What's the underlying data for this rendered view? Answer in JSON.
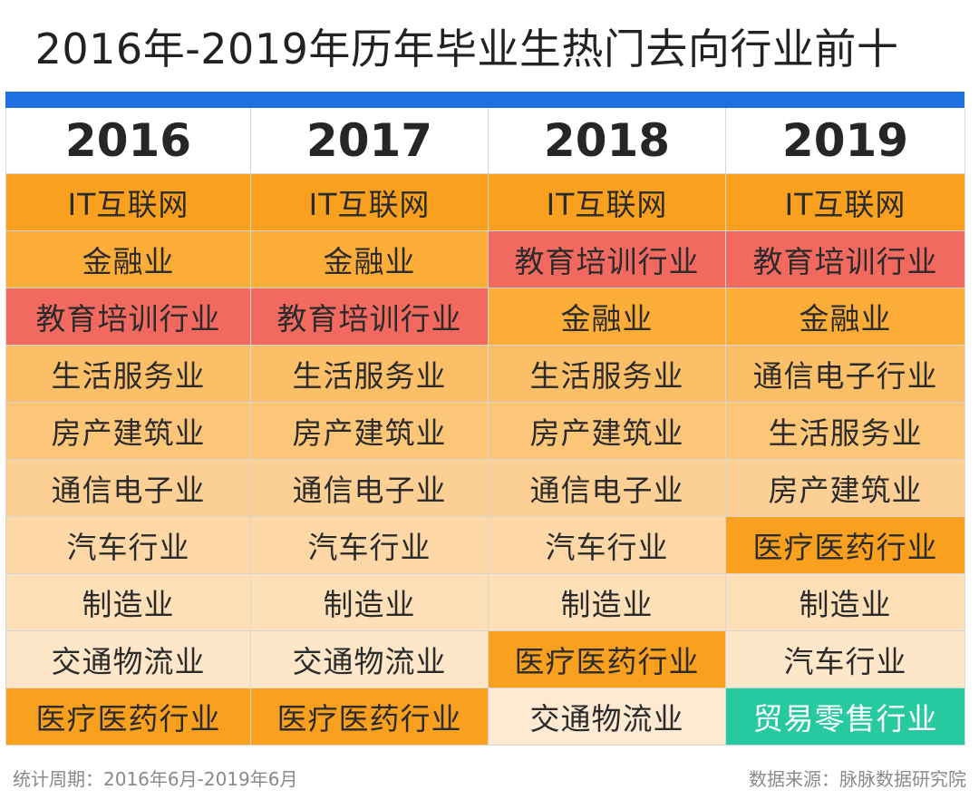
{
  "title": "2016年-2019年历年毕业生热门去向行业前十",
  "colors": {
    "header_bar": "#1e6fe0",
    "it_internet": "#f9a01e",
    "finance": "#fbad38",
    "education": "#f26a5f",
    "life_service": "#fbbf67",
    "real_estate": "#fcc679",
    "telecom": "#fcd094",
    "auto": "#fdd8a6",
    "manufacturing": "#fde0b8",
    "transport": "#fee7c9",
    "medical": "#f9a01e",
    "trade_retail": "#27c9a0"
  },
  "table": {
    "headers": [
      "2016",
      "2017",
      "2018",
      "2019"
    ],
    "rows": [
      [
        {
          "text": "IT互联网",
          "color": "#f9a01e"
        },
        {
          "text": "IT互联网",
          "color": "#f9a01e"
        },
        {
          "text": "IT互联网",
          "color": "#f9a01e"
        },
        {
          "text": "IT互联网",
          "color": "#f9a01e"
        }
      ],
      [
        {
          "text": "金融业",
          "color": "#fbad38"
        },
        {
          "text": "金融业",
          "color": "#fbad38"
        },
        {
          "text": "教育培训行业",
          "color": "#f26a5f"
        },
        {
          "text": "教育培训行业",
          "color": "#f26a5f"
        }
      ],
      [
        {
          "text": "教育培训行业",
          "color": "#f26a5f"
        },
        {
          "text": "教育培训行业",
          "color": "#f26a5f"
        },
        {
          "text": "金融业",
          "color": "#fbad38"
        },
        {
          "text": "金融业",
          "color": "#fbad38"
        }
      ],
      [
        {
          "text": "生活服务业",
          "color": "#fbbf67"
        },
        {
          "text": "生活服务业",
          "color": "#fbbf67"
        },
        {
          "text": "生活服务业",
          "color": "#fbbf67"
        },
        {
          "text": "通信电子行业",
          "color": "#fbbf67"
        }
      ],
      [
        {
          "text": "房产建筑业",
          "color": "#fcc679"
        },
        {
          "text": "房产建筑业",
          "color": "#fcc679"
        },
        {
          "text": "房产建筑业",
          "color": "#fcc679"
        },
        {
          "text": "生活服务业",
          "color": "#fcc679"
        }
      ],
      [
        {
          "text": "通信电子业",
          "color": "#fcd094"
        },
        {
          "text": "通信电子业",
          "color": "#fcd094"
        },
        {
          "text": "通信电子业",
          "color": "#fcd094"
        },
        {
          "text": "房产建筑业",
          "color": "#fcd094"
        }
      ],
      [
        {
          "text": "汽车行业",
          "color": "#fdd8a6"
        },
        {
          "text": "汽车行业",
          "color": "#fdd8a6"
        },
        {
          "text": "汽车行业",
          "color": "#fdd8a6"
        },
        {
          "text": "医疗医药行业",
          "color": "#f9a01e"
        }
      ],
      [
        {
          "text": "制造业",
          "color": "#fde0b8"
        },
        {
          "text": "制造业",
          "color": "#fde0b8"
        },
        {
          "text": "制造业",
          "color": "#fde0b8"
        },
        {
          "text": "制造业",
          "color": "#fde0b8"
        }
      ],
      [
        {
          "text": "交通物流业",
          "color": "#fee7c9"
        },
        {
          "text": "交通物流业",
          "color": "#fee7c9"
        },
        {
          "text": "医疗医药行业",
          "color": "#f9a01e"
        },
        {
          "text": "汽车行业",
          "color": "#fee7c9"
        }
      ],
      [
        {
          "text": "医疗医药行业",
          "color": "#f9a01e"
        },
        {
          "text": "医疗医药行业",
          "color": "#f9a01e"
        },
        {
          "text": "交通物流业",
          "color": "#fee9d2"
        },
        {
          "text": "贸易零售行业",
          "color": "#27c9a0",
          "light": true
        }
      ]
    ]
  },
  "footer": {
    "period": "统计周期：2016年6月-2019年6月",
    "source": "数据来源：脉脉数据研究院"
  }
}
